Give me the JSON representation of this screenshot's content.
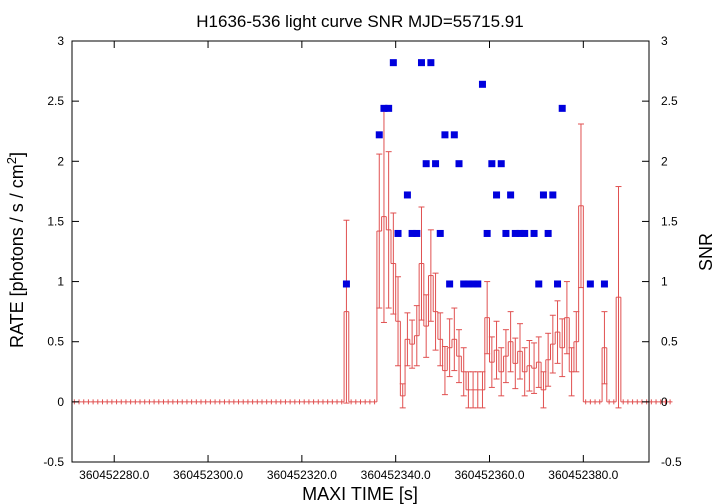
{
  "chart_data": {
    "type": "scatter",
    "title": "H1636-536 light curve  SNR MJD=55715.91",
    "xlabel": "MAXI TIME [s]",
    "ylabel_left": "RATE [photons / s / cm",
    "ylabel_left_sup": "2",
    "ylabel_left_end": "]",
    "ylabel_right": "SNR",
    "xlim": [
      360452271,
      360452394
    ],
    "ylim": [
      -0.5,
      3.0
    ],
    "x_ticks": [
      "360452280.0",
      "360452300.0",
      "360452320.0",
      "360452340.0",
      "360452360.0",
      "360452380.0"
    ],
    "x_tick_values": [
      360452280,
      360452300,
      360452320,
      360452340,
      360452360,
      360452380
    ],
    "y_ticks": [
      "-0.5",
      "0",
      "0.5",
      "1",
      "1.5",
      "2",
      "2.5",
      "3"
    ],
    "y_tick_values": [
      -0.5,
      0,
      0.5,
      1,
      1.5,
      2,
      2.5,
      3
    ],
    "series_style": {
      "rate_color": "#e05050",
      "snr_color": "#0000dd"
    },
    "time_start": 360452271,
    "time_step": 1,
    "rate": [
      0,
      0,
      0,
      0,
      0,
      0,
      0,
      0,
      0,
      0,
      0,
      0,
      0,
      0,
      0,
      0,
      0,
      0,
      0,
      0,
      0,
      0,
      0,
      0,
      0,
      0,
      0,
      0,
      0,
      0,
      0,
      0,
      0,
      0,
      0,
      0,
      0,
      0,
      0,
      0,
      0,
      0,
      0,
      0,
      0,
      0,
      0,
      0,
      0,
      0,
      0,
      0,
      0,
      0,
      0,
      0,
      0,
      0,
      0.75,
      0,
      0,
      0,
      0,
      0,
      0,
      1.42,
      1.54,
      1.43,
      1.15,
      0.67,
      0.05,
      0.52,
      0.48,
      0.55,
      1.15,
      0.63,
      1.05,
      0.75,
      0.52,
      0.26,
      0.45,
      0.52,
      0.38,
      0.25,
      0.1,
      0.1,
      0.1,
      0.1,
      0.7,
      0.33,
      0.43,
      0.25,
      0.38,
      0.5,
      0.32,
      0.42,
      0.25,
      0.3,
      0.28,
      0.33,
      0.1,
      0.35,
      0.48,
      0.58,
      0.45,
      0.7,
      0.25,
      0.5,
      1.63,
      0,
      0,
      0,
      0,
      0.45,
      0,
      0,
      0.87,
      0,
      0,
      0,
      0,
      0,
      0,
      0,
      0,
      0,
      0,
      0
    ],
    "rate_err": [
      0,
      0,
      0,
      0,
      0,
      0,
      0,
      0,
      0,
      0,
      0,
      0,
      0,
      0,
      0,
      0,
      0,
      0,
      0,
      0,
      0,
      0,
      0,
      0,
      0,
      0,
      0,
      0,
      0,
      0,
      0,
      0,
      0,
      0,
      0,
      0,
      0,
      0,
      0,
      0,
      0,
      0,
      0,
      0,
      0,
      0,
      0,
      0,
      0,
      0,
      0,
      0,
      0,
      0,
      0,
      0,
      0,
      0,
      0.76,
      0,
      0,
      0,
      0,
      0,
      0,
      0.64,
      0.88,
      0.65,
      0.42,
      0.37,
      0.1,
      0.22,
      0.2,
      0.25,
      0.47,
      0.26,
      0.38,
      0.32,
      0.22,
      0.2,
      0.24,
      0.26,
      0.22,
      0.2,
      0.15,
      0.15,
      0.15,
      0.15,
      0.3,
      0.21,
      0.24,
      0.2,
      0.22,
      0.25,
      0.21,
      0.23,
      0.2,
      0.21,
      0.21,
      0.21,
      0.15,
      0.22,
      0.24,
      0.26,
      0.24,
      0.3,
      0.2,
      0.25,
      0.68,
      0,
      0,
      0,
      0,
      0.3,
      0,
      0,
      0.92,
      0,
      0,
      0,
      0,
      0,
      0,
      0,
      0,
      0,
      0,
      0
    ],
    "snr": [
      null,
      null,
      null,
      null,
      null,
      null,
      null,
      null,
      null,
      null,
      null,
      null,
      null,
      null,
      null,
      null,
      null,
      null,
      null,
      null,
      null,
      null,
      null,
      null,
      null,
      null,
      null,
      null,
      null,
      null,
      null,
      null,
      null,
      null,
      null,
      null,
      null,
      null,
      null,
      null,
      null,
      null,
      null,
      null,
      null,
      null,
      null,
      null,
      null,
      null,
      null,
      null,
      null,
      null,
      null,
      null,
      null,
      null,
      0.98,
      null,
      null,
      null,
      null,
      null,
      null,
      2.22,
      2.44,
      2.44,
      2.82,
      1.4,
      null,
      1.72,
      1.4,
      1.4,
      2.82,
      1.98,
      2.82,
      1.98,
      1.4,
      2.22,
      0.98,
      2.22,
      1.98,
      0.98,
      0.98,
      0.98,
      0.98,
      2.64,
      1.4,
      1.98,
      1.72,
      1.98,
      1.4,
      1.72,
      1.4,
      1.4,
      1.4,
      null,
      1.4,
      0.98,
      1.72,
      1.4,
      1.72,
      0.98,
      2.44,
      null,
      null,
      null,
      null,
      null,
      0.98,
      null,
      null,
      0.98,
      null,
      null,
      null,
      null,
      null,
      null,
      null,
      null,
      null,
      null,
      null
    ]
  }
}
